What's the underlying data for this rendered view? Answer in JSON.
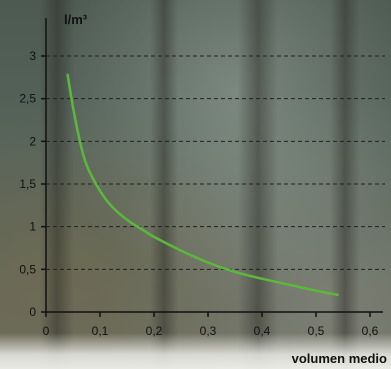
{
  "chart_data": {
    "type": "line",
    "title": "",
    "xlabel": "volumen medio",
    "ylabel": "l/m³",
    "xlim": [
      0,
      0.6
    ],
    "ylim": [
      0,
      3
    ],
    "x_ticks": [
      0,
      0.1,
      0.2,
      0.3,
      0.4,
      0.5,
      0.6
    ],
    "x_tick_labels": [
      "0",
      "0,1",
      "0,2",
      "0,3",
      "0,4",
      "0,5",
      "0,6"
    ],
    "y_ticks": [
      0,
      0.5,
      1,
      1.5,
      2,
      2.5,
      3
    ],
    "y_tick_labels": [
      "0",
      "0,5",
      "1",
      "1,5",
      "2",
      "2,5",
      "3"
    ],
    "grid": "horizontal-dashed",
    "series": [
      {
        "color": "#5cb83a",
        "x": [
          0.04,
          0.05,
          0.06,
          0.07,
          0.08,
          0.1,
          0.12,
          0.15,
          0.18,
          0.2,
          0.25,
          0.3,
          0.35,
          0.4,
          0.45,
          0.5,
          0.54
        ],
        "y": [
          2.78,
          2.4,
          2.08,
          1.82,
          1.65,
          1.42,
          1.25,
          1.08,
          0.96,
          0.88,
          0.72,
          0.58,
          0.47,
          0.39,
          0.32,
          0.25,
          0.2
        ]
      }
    ]
  }
}
